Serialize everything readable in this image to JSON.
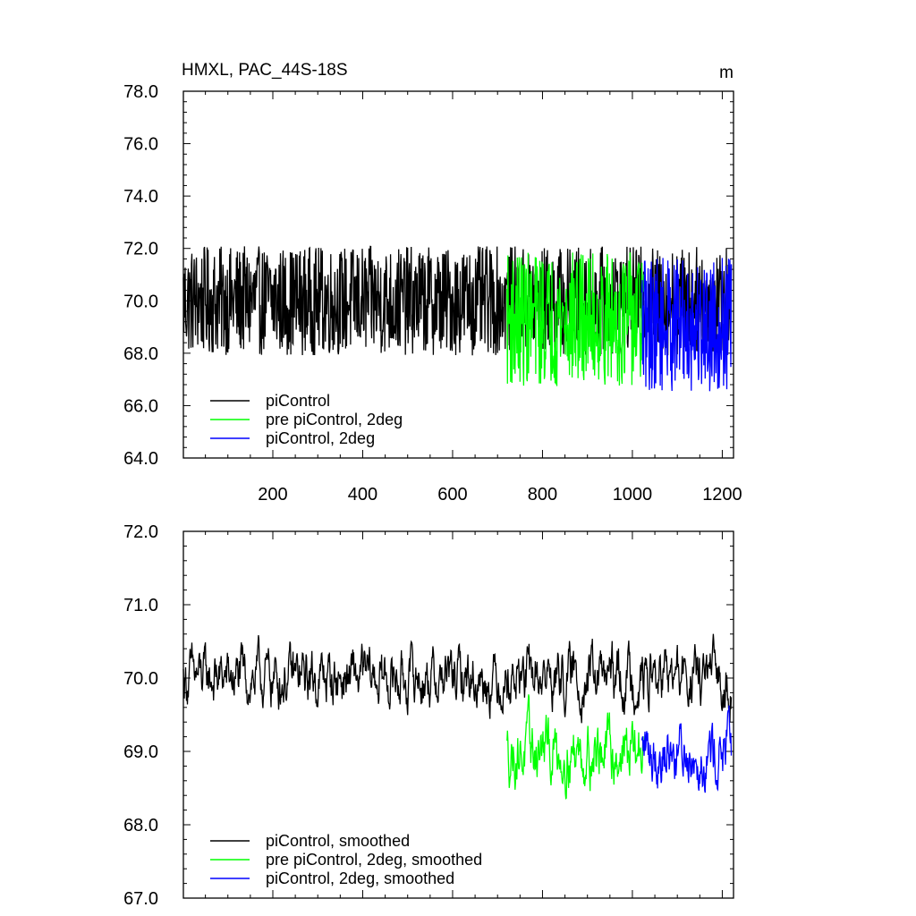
{
  "chart_data": [
    {
      "type": "line",
      "title": "HMXL, PAC_44S-18S",
      "units": "m",
      "xlim": [
        1,
        1225
      ],
      "ylim": [
        64,
        78
      ],
      "xticks": [
        200,
        400,
        600,
        800,
        1000,
        1200
      ],
      "yticks": [
        64,
        66,
        68,
        70,
        72,
        74,
        76,
        78
      ],
      "ytick_labels": [
        "64.0",
        "66.0",
        "68.0",
        "70.0",
        "72.0",
        "74.0",
        "76.0",
        "78.0"
      ],
      "legend_position": "bottom-left",
      "series": [
        {
          "name": "piControl",
          "color": "#000000",
          "x_range": [
            1,
            1220
          ],
          "mean": 70.0,
          "spread": 1.3
        },
        {
          "name": "pre piControl, 2deg",
          "color": "#00ff00",
          "x_range": [
            721,
            1025
          ],
          "mean": 69.3,
          "spread": 1.6
        },
        {
          "name": "piControl, 2deg",
          "color": "#0000ff",
          "x_range": [
            1021,
            1220
          ],
          "mean": 69.1,
          "spread": 1.6
        }
      ]
    },
    {
      "type": "line",
      "title": "",
      "xlim": [
        1,
        1225
      ],
      "ylim": [
        67,
        72
      ],
      "xticks": [
        200,
        400,
        600,
        800,
        1000,
        1200
      ],
      "yticks": [
        67,
        68,
        69,
        70,
        71,
        72
      ],
      "ytick_labels": [
        "67.0",
        "68.0",
        "69.0",
        "70.0",
        "71.0",
        "72.0"
      ],
      "legend_position": "bottom-left",
      "series": [
        {
          "name": "piControl, smoothed",
          "color": "#000000",
          "x_range": [
            1,
            1220
          ],
          "mean": 70.0,
          "spread": 0.45
        },
        {
          "name": "pre piControl, 2deg, smoothed",
          "color": "#00ff00",
          "x_range": [
            721,
            1025
          ],
          "mean": 69.0,
          "spread": 0.5
        },
        {
          "name": "piControl, 2deg, smoothed",
          "color": "#0000ff",
          "x_range": [
            1021,
            1220
          ],
          "mean": 69.0,
          "spread": 0.5
        }
      ]
    }
  ]
}
